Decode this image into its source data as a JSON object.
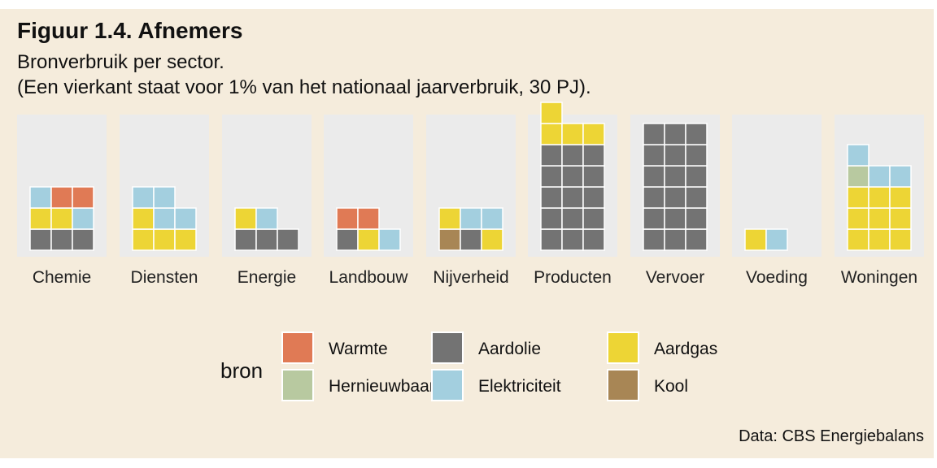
{
  "title": "Figuur 1.4. Afnemers",
  "subtitle_line1": "Bronverbruik per sector.",
  "subtitle_line2": "(Een vierkant staat voor 1% van het nationaal jaarverbruik, 30 PJ).",
  "caption": "Data: CBS Energiebalans",
  "chart_data": {
    "type": "waffle",
    "unit": "1 square = 1% of national annual consumption (30 PJ)",
    "legend_title": "bron",
    "legend_placement": "bottom",
    "sources": [
      {
        "name": "Warmte",
        "color": "#e07a55"
      },
      {
        "name": "Hernieuwbaar",
        "color": "#b8c9a0"
      },
      {
        "name": "Aardolie",
        "color": "#737373"
      },
      {
        "name": "Elektriciteit",
        "color": "#a3cfdf"
      },
      {
        "name": "Aardgas",
        "color": "#edd535"
      },
      {
        "name": "Kool",
        "color": "#a88655"
      }
    ],
    "sectors": [
      {
        "name": "Chemie",
        "squares": [
          {
            "source": "Aardolie",
            "count": 3
          },
          {
            "source": "Aardgas",
            "count": 2
          },
          {
            "source": "Elektriciteit",
            "count": 2
          },
          {
            "source": "Warmte",
            "count": 2
          }
        ]
      },
      {
        "name": "Diensten",
        "squares": [
          {
            "source": "Aardgas",
            "count": 4
          },
          {
            "source": "Elektriciteit",
            "count": 4
          }
        ]
      },
      {
        "name": "Energie",
        "squares": [
          {
            "source": "Aardolie",
            "count": 3
          },
          {
            "source": "Aardgas",
            "count": 1
          },
          {
            "source": "Elektriciteit",
            "count": 1
          }
        ]
      },
      {
        "name": "Landbouw",
        "squares": [
          {
            "source": "Aardolie",
            "count": 1
          },
          {
            "source": "Aardgas",
            "count": 1
          },
          {
            "source": "Elektriciteit",
            "count": 1
          },
          {
            "source": "Warmte",
            "count": 2
          }
        ]
      },
      {
        "name": "Nijverheid",
        "squares": [
          {
            "source": "Kool",
            "count": 1
          },
          {
            "source": "Aardolie",
            "count": 1
          },
          {
            "source": "Aardgas",
            "count": 2
          },
          {
            "source": "Elektriciteit",
            "count": 2
          }
        ]
      },
      {
        "name": "Producten",
        "squares": [
          {
            "source": "Aardolie",
            "count": 15
          },
          {
            "source": "Aardgas",
            "count": 4
          }
        ]
      },
      {
        "name": "Vervoer",
        "squares": [
          {
            "source": "Aardolie",
            "count": 18
          }
        ]
      },
      {
        "name": "Voeding",
        "squares": [
          {
            "source": "Aardgas",
            "count": 1
          },
          {
            "source": "Elektriciteit",
            "count": 1
          }
        ]
      },
      {
        "name": "Woningen",
        "squares": [
          {
            "source": "Aardgas",
            "count": 9
          },
          {
            "source": "Hernieuwbaar",
            "count": 1
          },
          {
            "source": "Elektriciteit",
            "count": 3
          }
        ]
      }
    ]
  }
}
